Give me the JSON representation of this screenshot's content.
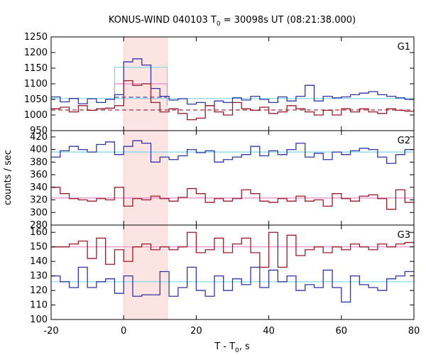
{
  "chart_data": {
    "type": "line",
    "title": {
      "prefix": "KONUS-WIND 040103 T",
      "sub": "0",
      "suffix": " = 30098s UT (08:21:38.000)"
    },
    "xlabel": {
      "prefix": "T - T",
      "sub": "0",
      "suffix": ", s"
    },
    "ylabel": "counts / sec",
    "xlim": [
      -20,
      80
    ],
    "xticks": [
      -20,
      0,
      20,
      40,
      60,
      80
    ],
    "highlight": {
      "x0": 0,
      "x1": 12,
      "color": "#ffe4e4"
    },
    "colors": {
      "blue": "#2e35a8",
      "red": "#9b1a28",
      "cyan": "#7fd6e6",
      "pink": "#ee88c8"
    },
    "bin_edges": [
      -20,
      -17.5,
      -15,
      -12.5,
      -10,
      -7.5,
      -5,
      -2.5,
      0,
      2.5,
      5,
      7.5,
      10,
      12.5,
      15,
      17.5,
      20,
      22.5,
      25,
      27.5,
      30,
      32.5,
      35,
      37.5,
      40,
      42.5,
      45,
      47.5,
      50,
      52.5,
      55,
      57.5,
      60,
      62.5,
      65,
      67.5,
      70,
      72.5,
      75,
      77.5,
      80
    ],
    "panels": [
      {
        "label": "G1",
        "ylim": [
          950,
          1250
        ],
        "yticks": [
          950,
          1000,
          1050,
          1100,
          1150,
          1200,
          1250
        ],
        "series": [
          {
            "color": "blue",
            "values": [
              1058,
              1042,
              1053,
              1036,
              1052,
              1040,
              1050,
              1065,
              1170,
              1180,
              1160,
              1085,
              1060,
              1048,
              1052,
              1035,
              1040,
              1030,
              1045,
              1040,
              1055,
              1048,
              1060,
              1050,
              1040,
              1058,
              1045,
              1060,
              1095,
              1045,
              1060,
              1055,
              1058,
              1065,
              1070,
              1075,
              1065,
              1060,
              1055,
              1050
            ]
          },
          {
            "color": "red",
            "values": [
              1020,
              1025,
              1010,
              1030,
              1015,
              1020,
              1022,
              1030,
              1110,
              1095,
              1100,
              1040,
              1010,
              1020,
              1005,
              985,
              990,
              1030,
              1010,
              1000,
              1040,
              1020,
              1015,
              1025,
              1005,
              1010,
              1030,
              1020,
              1010,
              1000,
              1015,
              1000,
              1020,
              1010,
              1020,
              1010,
              1005,
              1020,
              1015,
              1012
            ]
          }
        ],
        "segments": [
          {
            "color": "cyan",
            "dashed": false,
            "x0": -2.5,
            "x1": 12,
            "y": 1153
          },
          {
            "color": "pink",
            "dashed": false,
            "x0": -2.5,
            "x1": 12,
            "y": 1100
          }
        ],
        "baselines": [
          {
            "color": "cyan",
            "dashed": false,
            "x0": -20,
            "x1": 80,
            "y": 1053
          },
          {
            "color": "blue",
            "dashed": true,
            "x0": -2.5,
            "x1": 12,
            "y": 1057
          },
          {
            "color": "red",
            "dashed": true,
            "x0": -20,
            "x1": 80,
            "y": 1016
          }
        ]
      },
      {
        "label": "G2",
        "ylim": [
          280,
          430
        ],
        "yticks": [
          280,
          300,
          320,
          340,
          360,
          380,
          400,
          420
        ],
        "series": [
          {
            "color": "blue",
            "values": [
              388,
              398,
              405,
              400,
              396,
              408,
              412,
              392,
              405,
              414,
              410,
              380,
              388,
              384,
              390,
              400,
              395,
              398,
              380,
              384,
              388,
              392,
              405,
              390,
              398,
              392,
              400,
              410,
              388,
              394,
              384,
              396,
              392,
              398,
              402,
              400,
              388,
              378,
              392,
              400
            ]
          },
          {
            "color": "red",
            "values": [
              340,
              330,
              322,
              320,
              318,
              322,
              320,
              340,
              310,
              322,
              320,
              326,
              322,
              318,
              324,
              338,
              330,
              316,
              322,
              318,
              322,
              336,
              330,
              318,
              316,
              322,
              318,
              326,
              318,
              320,
              310,
              330,
              322,
              318,
              326,
              328,
              322,
              305,
              336,
              316
            ]
          }
        ],
        "segments": [],
        "baselines": [
          {
            "color": "cyan",
            "dashed": false,
            "x0": -20,
            "x1": 80,
            "y": 396
          },
          {
            "color": "pink",
            "dashed": false,
            "x0": -20,
            "x1": 80,
            "y": 323
          }
        ]
      },
      {
        "label": "G3",
        "ylim": [
          100,
          165
        ],
        "yticks": [
          100,
          110,
          120,
          130,
          140,
          150,
          160
        ],
        "series": [
          {
            "color": "blue",
            "values": [
              130,
              126,
              122,
              136,
              122,
              126,
              128,
              118,
              130,
              116,
              117,
              117,
              133,
              116,
              122,
              136,
              120,
              116,
              130,
              120,
              128,
              124,
              136,
              122,
              134,
              126,
              130,
              120,
              124,
              122,
              134,
              122,
              112,
              130,
              124,
              122,
              120,
              128,
              130,
              133
            ]
          },
          {
            "color": "red",
            "values": [
              150,
              150,
              152,
              154,
              142,
              156,
              138,
              148,
              140,
              150,
              152,
              148,
              150,
              148,
              150,
              160,
              146,
              148,
              156,
              146,
              152,
              156,
              146,
              136,
              160,
              136,
              158,
              144,
              148,
              150,
              146,
              150,
              148,
              152,
              150,
              148,
              152,
              150,
              152,
              153
            ]
          }
        ],
        "segments": [],
        "baselines": [
          {
            "color": "cyan",
            "dashed": false,
            "x0": -20,
            "x1": 80,
            "y": 126
          },
          {
            "color": "pink",
            "dashed": false,
            "x0": -20,
            "x1": 80,
            "y": 150
          }
        ]
      }
    ]
  }
}
